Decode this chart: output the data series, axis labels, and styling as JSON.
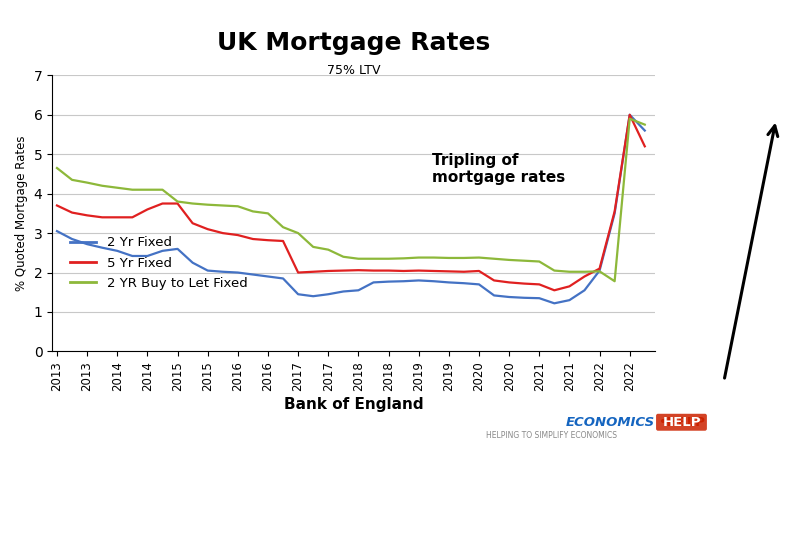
{
  "title": "UK Mortgage Rates",
  "subtitle": "75% LTV",
  "xlabel": "Bank of England",
  "ylabel": "% Quoted Mortgage Rates",
  "annotation": "Tripling of\nmortgage rates",
  "ylim": [
    0,
    7
  ],
  "yticks": [
    0,
    1,
    2,
    3,
    4,
    5,
    6,
    7
  ],
  "legend_labels": [
    "2 Yr Fixed",
    "5 Yr Fixed",
    "2 YR Buy to Let Fixed"
  ],
  "line_colors": [
    "#4472C4",
    "#E02020",
    "#8DB83A"
  ],
  "background_color": "#FFFFFF",
  "two_yr_fixed_x": [
    2013.0,
    2013.25,
    2013.5,
    2013.75,
    2014.0,
    2014.25,
    2014.5,
    2014.75,
    2015.0,
    2015.25,
    2015.5,
    2015.75,
    2016.0,
    2016.25,
    2016.5,
    2016.75,
    2017.0,
    2017.25,
    2017.5,
    2017.75,
    2018.0,
    2018.25,
    2018.5,
    2018.75,
    2019.0,
    2019.25,
    2019.5,
    2019.75,
    2020.0,
    2020.25,
    2020.5,
    2020.75,
    2021.0,
    2021.25,
    2021.5,
    2021.75,
    2022.0,
    2022.25,
    2022.5,
    2022.75
  ],
  "two_yr_fixed_y": [
    3.05,
    2.85,
    2.72,
    2.63,
    2.55,
    2.42,
    2.42,
    2.55,
    2.6,
    2.25,
    2.05,
    2.02,
    2.0,
    1.95,
    1.9,
    1.85,
    1.45,
    1.4,
    1.45,
    1.52,
    1.55,
    1.75,
    1.77,
    1.78,
    1.8,
    1.78,
    1.75,
    1.73,
    1.7,
    1.42,
    1.38,
    1.36,
    1.35,
    1.22,
    1.3,
    1.55,
    2.05,
    3.5,
    6.0,
    5.6
  ],
  "five_yr_fixed_x": [
    2013.0,
    2013.25,
    2013.5,
    2013.75,
    2014.0,
    2014.25,
    2014.5,
    2014.75,
    2015.0,
    2015.25,
    2015.5,
    2015.75,
    2016.0,
    2016.25,
    2016.5,
    2016.75,
    2017.0,
    2017.25,
    2017.5,
    2017.75,
    2018.0,
    2018.25,
    2018.5,
    2018.75,
    2019.0,
    2019.25,
    2019.5,
    2019.75,
    2020.0,
    2020.25,
    2020.5,
    2020.75,
    2021.0,
    2021.25,
    2021.5,
    2021.75,
    2022.0,
    2022.25,
    2022.5,
    2022.75
  ],
  "five_yr_fixed_y": [
    3.7,
    3.52,
    3.45,
    3.4,
    3.4,
    3.4,
    3.6,
    3.75,
    3.75,
    3.25,
    3.1,
    3.0,
    2.95,
    2.85,
    2.82,
    2.8,
    2.0,
    2.02,
    2.04,
    2.05,
    2.06,
    2.05,
    2.05,
    2.04,
    2.05,
    2.04,
    2.03,
    2.02,
    2.04,
    1.8,
    1.75,
    1.72,
    1.7,
    1.55,
    1.65,
    1.9,
    2.1,
    3.55,
    6.0,
    5.2
  ],
  "btl_x": [
    2013.0,
    2013.25,
    2013.5,
    2013.75,
    2014.0,
    2014.25,
    2014.5,
    2014.75,
    2015.0,
    2015.25,
    2015.5,
    2015.75,
    2016.0,
    2016.25,
    2016.5,
    2016.75,
    2017.0,
    2017.25,
    2017.5,
    2017.75,
    2018.0,
    2018.25,
    2018.5,
    2018.75,
    2019.0,
    2019.25,
    2019.5,
    2019.75,
    2020.0,
    2020.25,
    2020.5,
    2020.75,
    2021.0,
    2021.25,
    2021.5,
    2021.75,
    2022.0,
    2022.25,
    2022.5,
    2022.75
  ],
  "btl_y": [
    4.65,
    4.35,
    4.28,
    4.2,
    4.15,
    4.1,
    4.1,
    4.1,
    3.8,
    3.75,
    3.72,
    3.7,
    3.68,
    3.55,
    3.5,
    3.15,
    3.0,
    2.65,
    2.58,
    2.4,
    2.35,
    2.35,
    2.35,
    2.36,
    2.38,
    2.38,
    2.37,
    2.37,
    2.38,
    2.35,
    2.32,
    2.3,
    2.28,
    2.05,
    2.02,
    2.02,
    2.03,
    1.78,
    5.9,
    5.75
  ],
  "xtick_positions": [
    2013.0,
    2013.5,
    2014.0,
    2014.5,
    2015.0,
    2015.5,
    2016.0,
    2016.5,
    2017.0,
    2017.5,
    2018.0,
    2018.5,
    2019.0,
    2019.5,
    2020.0,
    2020.5,
    2021.0,
    2021.5,
    2022.0,
    2022.5
  ],
  "xtick_labels": [
    "2013",
    "2013",
    "2014",
    "2014",
    "2015",
    "2015",
    "2016",
    "2016",
    "2017",
    "2017",
    "2018",
    "2018",
    "2019",
    "2019",
    "2020",
    "2020",
    "2021",
    "2021",
    "2022",
    "2022"
  ]
}
